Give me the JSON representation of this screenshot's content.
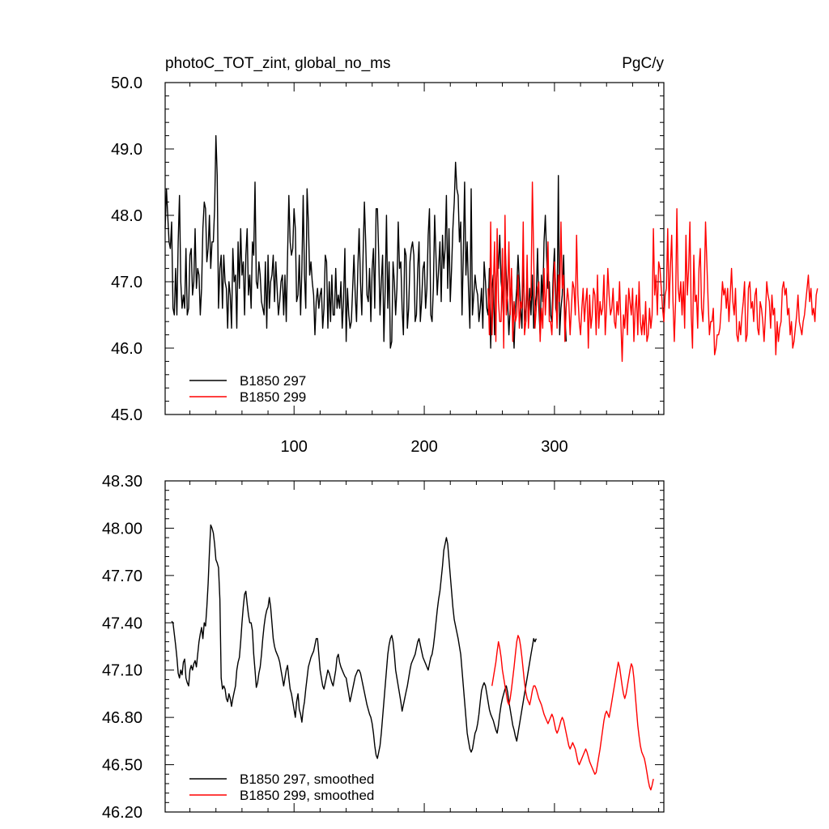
{
  "chart_data": [
    {
      "type": "line",
      "title": "photoC_TOT_zint, global_no_ms",
      "units": "PgC/y",
      "xlabel": "",
      "ylabel": "",
      "xlim": [
        1,
        384
      ],
      "ylim": [
        45.0,
        50.0
      ],
      "x_ticks": [
        100,
        200,
        300
      ],
      "x_tick_labels": [
        "100",
        "200",
        "300"
      ],
      "y_ticks": [
        45,
        46,
        47,
        48,
        49,
        50
      ],
      "y_tick_labels": [
        "45.0",
        "46.0",
        "47.0",
        "48.0",
        "49.0",
        "50.0"
      ],
      "legend_position": "bottom-left",
      "series": [
        {
          "name": "B1850 297",
          "color": "#000000",
          "x_start": 1,
          "values": [
            47.8,
            48.4,
            48.0,
            47.6,
            47.5,
            47.9,
            46.6,
            46.5,
            47.2,
            46.5,
            47.6,
            48.3,
            47.0,
            46.6,
            46.8,
            46.6,
            47.5,
            46.5,
            46.6,
            47.4,
            47.5,
            46.8,
            47.0,
            47.8,
            46.9,
            47.2,
            47.1,
            46.5,
            46.9,
            47.8,
            48.2,
            48.1,
            47.3,
            47.5,
            48.0,
            47.2,
            47.6,
            47.6,
            48.1,
            49.2,
            48.6,
            46.6,
            47.2,
            47.4,
            46.6,
            47.4,
            47.0,
            46.9,
            46.3,
            47.0,
            46.8,
            46.3,
            47.5,
            47.0,
            47.1,
            46.3,
            47.6,
            46.9,
            47.8,
            47.1,
            47.3,
            46.5,
            47.4,
            47.8,
            46.8,
            47.1,
            46.6,
            47.6,
            47.4,
            48.5,
            47.0,
            46.9,
            47.3,
            47.1,
            46.7,
            46.6,
            46.5,
            47.3,
            46.3,
            47.4,
            46.6,
            47.0,
            47.1,
            47.4,
            46.7,
            47.3,
            46.9,
            46.5,
            46.7,
            47.0,
            47.1,
            46.5,
            47.1,
            46.4,
            47.4,
            48.3,
            47.6,
            47.4,
            47.5,
            48.1,
            47.8,
            46.7,
            46.8,
            47.4,
            46.5,
            47.2,
            48.3,
            47.1,
            46.6,
            48.4,
            47.9,
            47.1,
            47.3,
            47.0,
            46.8,
            46.2,
            46.7,
            46.9,
            46.6,
            46.8,
            46.9,
            46.3,
            46.6,
            47.4,
            47.3,
            46.3,
            47.0,
            46.4,
            47.1,
            46.5,
            46.5,
            47.2,
            46.6,
            46.8,
            46.6,
            47.0,
            46.3,
            46.7,
            47.5,
            46.1,
            46.9,
            46.5,
            46.3,
            46.4,
            46.9,
            47.4,
            46.8,
            46.4,
            47.2,
            47.8,
            47.0,
            46.5,
            47.4,
            48.2,
            47.6,
            46.8,
            46.7,
            47.2,
            46.4,
            47.2,
            47.5,
            46.6,
            48.1,
            48.1,
            47.4,
            46.5,
            47.0,
            47.4,
            46.1,
            46.9,
            48.0,
            46.6,
            47.3,
            46.0,
            46.1,
            47.3,
            47.0,
            46.5,
            46.9,
            47.9,
            47.2,
            47.3,
            46.6,
            46.2,
            47.5,
            47.4,
            46.3,
            46.6,
            47.3,
            47.5,
            47.6,
            47.4,
            46.4,
            46.5,
            47.2,
            47.6,
            46.4,
            46.7,
            47.2,
            47.3,
            46.6,
            46.9,
            47.7,
            48.1,
            46.5,
            46.4,
            46.9,
            48.0,
            47.4,
            46.8,
            47.2,
            47.6,
            46.7,
            47.7,
            47.2,
            47.5,
            48.3,
            46.9,
            47.8,
            46.7,
            47.2,
            47.8,
            48.2,
            48.8,
            48.4,
            48.3,
            47.6,
            47.9,
            46.5,
            47.4,
            48.5,
            47.1,
            47.6,
            46.9,
            46.3,
            48.4,
            46.5,
            46.8,
            47.1,
            46.9,
            46.8,
            46.4,
            46.6,
            46.9,
            46.3,
            47.3,
            47.0,
            46.6,
            46.5,
            47.2,
            46.0,
            46.9,
            47.1,
            46.2,
            46.8,
            47.3,
            47.2,
            47.7,
            47.0,
            46.8,
            46.4,
            47.6,
            47.1,
            46.7,
            46.2,
            46.6,
            47.1,
            46.5,
            46.0,
            46.6,
            46.9,
            47.4,
            47.0,
            46.6,
            46.3,
            47.3,
            46.6,
            46.4,
            47.0,
            46.4,
            46.9,
            46.5,
            47.1,
            46.3,
            46.6,
            46.8,
            47.5,
            46.6,
            46.2,
            47.1,
            46.7,
            47.6,
            48.0,
            47.4,
            46.9,
            47.0,
            46.5,
            46.4,
            47.1,
            47.5,
            46.6,
            46.5,
            48.6,
            46.2,
            46.6,
            46.8,
            47.4,
            46.5,
            46.1
          ]
        },
        {
          "name": "B1850 299",
          "color": "#ff0000",
          "x_start": 249,
          "values": [
            46.9,
            46.2,
            47.9,
            46.2,
            46.9,
            47.6,
            46.1,
            47.8,
            46.7,
            46.4,
            46.4,
            47.5,
            46.0,
            48.0,
            46.5,
            46.8,
            47.6,
            46.5,
            47.2,
            46.1,
            46.7,
            46.4,
            46.5,
            47.1,
            46.3,
            46.7,
            46.6,
            47.9,
            46.2,
            46.4,
            47.4,
            46.3,
            46.7,
            46.8,
            48.5,
            47.4,
            46.3,
            46.6,
            46.9,
            47.0,
            46.1,
            46.6,
            46.3,
            47.2,
            46.5,
            46.9,
            47.6,
            46.4,
            46.4,
            46.2,
            46.8,
            47.3,
            46.9,
            46.3,
            47.1,
            46.7,
            47.9,
            46.9,
            47.1,
            46.1,
            46.6,
            46.9,
            46.7,
            46.2,
            46.6,
            47.0,
            46.9,
            46.5,
            47.7,
            46.8,
            46.4,
            46.2,
            46.6,
            46.9,
            46.4,
            46.7,
            46.9,
            46.0,
            46.8,
            46.3,
            46.5,
            46.9,
            46.8,
            46.2,
            47.1,
            46.3,
            46.7,
            46.5,
            46.6,
            47.1,
            46.2,
            46.6,
            47.2,
            46.8,
            46.5,
            46.6,
            46.9,
            46.4,
            46.3,
            46.7,
            46.5,
            47.0,
            46.4,
            45.8,
            46.5,
            46.3,
            46.8,
            46.2,
            46.9,
            46.7,
            46.5,
            46.9,
            46.1,
            46.6,
            46.8,
            46.2,
            47.0,
            46.4,
            46.2,
            46.5,
            46.2,
            46.7,
            46.1,
            46.2,
            46.6,
            46.3,
            46.5,
            47.8,
            46.8,
            47.1,
            46.5,
            47.3,
            47.2,
            46.9,
            46.6,
            46.4,
            46.8,
            46.9,
            47.8,
            46.6,
            47.2,
            47.7,
            46.7,
            46.1,
            46.7,
            48.1,
            46.9,
            46.7,
            47.0,
            46.5,
            47.0,
            46.3,
            47.7,
            46.8,
            47.2,
            47.9,
            46.5,
            46.0,
            47.4,
            46.7,
            46.8,
            46.3,
            47.2,
            47.5,
            46.6,
            46.4,
            46.9,
            47.9,
            47.3,
            46.7,
            46.2,
            46.4,
            46.4,
            46.6,
            45.9,
            46.0,
            46.2,
            46.2,
            46.3,
            46.6,
            47.0,
            46.8,
            46.9,
            46.6,
            46.9,
            46.4,
            46.8,
            47.2,
            46.7,
            46.5,
            46.9,
            46.2,
            46.1,
            46.4,
            46.2,
            46.5,
            46.7,
            47.0,
            46.1,
            46.2,
            46.9,
            47.0,
            46.6,
            46.7,
            46.4,
            46.8,
            46.9,
            46.3,
            46.2,
            46.7,
            46.6,
            46.4,
            46.1,
            46.5,
            47.0,
            46.8,
            46.7,
            46.3,
            46.8,
            46.5,
            46.6,
            45.9,
            46.4,
            46.1,
            46.3,
            46.4,
            46.9,
            47.0,
            46.8,
            46.9,
            46.5,
            46.6,
            46.2,
            46.4,
            46.0,
            46.1,
            46.3,
            46.5,
            46.8,
            46.4,
            46.3,
            46.2,
            46.4,
            46.5,
            46.7,
            46.9,
            47.1,
            46.7,
            46.9,
            46.5,
            46.6,
            46.4,
            46.8,
            46.9
          ]
        }
      ]
    },
    {
      "type": "line",
      "title": "",
      "xlabel": "",
      "ylabel": "",
      "xlim": [
        1,
        384
      ],
      "ylim": [
        46.2,
        48.3
      ],
      "y_ticks": [
        46.2,
        46.5,
        46.8,
        47.1,
        47.4,
        47.7,
        48.0,
        48.3
      ],
      "y_tick_labels": [
        "46.20",
        "46.50",
        "46.80",
        "47.10",
        "47.40",
        "47.70",
        "48.00",
        "48.30"
      ],
      "legend_position": "bottom-left",
      "series": [
        {
          "name": "B1850 297, smoothed",
          "color": "#000000",
          "x_start": 6,
          "values": [
            47.41,
            47.4,
            47.33,
            47.26,
            47.18,
            47.08,
            47.05,
            47.1,
            47.07,
            47.15,
            47.17,
            47.05,
            47.02,
            47.0,
            47.1,
            47.13,
            47.1,
            47.14,
            47.16,
            47.12,
            47.2,
            47.28,
            47.33,
            47.37,
            47.3,
            47.4,
            47.38,
            47.5,
            47.65,
            47.85,
            48.02,
            48.0,
            47.97,
            47.9,
            47.8,
            47.78,
            47.75,
            47.55,
            47.05,
            46.98,
            47.0,
            46.98,
            46.92,
            46.9,
            46.95,
            46.92,
            46.87,
            46.92,
            46.96,
            47.0,
            47.1,
            47.15,
            47.18,
            47.28,
            47.4,
            47.5,
            47.58,
            47.6,
            47.52,
            47.45,
            47.4,
            47.4,
            47.35,
            47.2,
            47.1,
            46.99,
            47.02,
            47.08,
            47.12,
            47.2,
            47.3,
            47.38,
            47.44,
            47.48,
            47.5,
            47.56,
            47.5,
            47.4,
            47.3,
            47.25,
            47.22,
            47.2,
            47.18,
            47.15,
            47.1,
            47.05,
            47.0,
            47.05,
            47.1,
            47.13,
            47.05,
            46.98,
            46.95,
            46.9,
            46.85,
            46.8,
            46.9,
            46.95,
            46.85,
            46.82,
            46.77,
            46.85,
            46.9,
            46.98,
            47.05,
            47.12,
            47.15,
            47.18,
            47.2,
            47.22,
            47.26,
            47.3,
            47.3,
            47.2,
            47.1,
            47.05,
            47.0,
            46.98,
            47.02,
            47.06,
            47.1,
            47.08,
            47.05,
            47.02,
            47.0,
            47.05,
            47.1,
            47.18,
            47.2,
            47.15,
            47.12,
            47.1,
            47.08,
            47.06,
            47.05,
            47.0,
            46.95,
            46.9,
            46.94,
            46.98,
            47.02,
            47.06,
            47.08,
            47.1,
            47.1,
            47.08,
            47.04,
            47.0,
            46.96,
            46.92,
            46.88,
            46.85,
            46.82,
            46.8,
            46.76,
            46.7,
            46.62,
            46.56,
            46.54,
            46.58,
            46.62,
            46.7,
            46.8,
            46.9,
            47.0,
            47.1,
            47.2,
            47.26,
            47.3,
            47.32,
            47.28,
            47.2,
            47.1,
            47.05,
            47.0,
            46.95,
            46.9,
            46.84,
            46.88,
            46.92,
            46.96,
            47.0,
            47.05,
            47.1,
            47.14,
            47.16,
            47.18,
            47.2,
            47.24,
            47.28,
            47.3,
            47.26,
            47.22,
            47.18,
            47.16,
            47.14,
            47.12,
            47.1,
            47.14,
            47.18,
            47.2,
            47.25,
            47.32,
            47.4,
            47.48,
            47.55,
            47.6,
            47.68,
            47.76,
            47.86,
            47.9,
            47.94,
            47.9,
            47.8,
            47.7,
            47.6,
            47.5,
            47.42,
            47.38,
            47.34,
            47.3,
            47.25,
            47.2,
            47.1,
            47.0,
            46.9,
            46.8,
            46.7,
            46.65,
            46.6,
            46.58,
            46.6,
            46.65,
            46.7,
            46.72,
            46.76,
            46.82,
            46.9,
            46.97,
            47.0,
            47.02,
            47.0,
            46.95,
            46.9,
            46.85,
            46.82,
            46.8,
            46.78,
            46.75,
            46.72,
            46.7,
            46.75,
            46.82,
            46.88,
            46.92,
            46.95,
            46.98,
            47.0,
            46.96,
            46.9,
            46.85,
            46.8,
            46.75,
            46.72,
            46.68,
            46.65,
            46.7,
            46.75,
            46.8,
            46.85,
            46.9,
            46.95,
            47.0,
            47.05,
            47.1,
            47.15,
            47.2,
            47.25,
            47.3,
            47.28,
            47.3
          ]
        },
        {
          "name": "B1850 299, smoothed",
          "color": "#ff0000",
          "x_start": 252,
          "values": [
            47.0,
            47.05,
            47.1,
            47.15,
            47.22,
            47.28,
            47.24,
            47.18,
            47.1,
            47.05,
            47.0,
            46.95,
            46.9,
            46.88,
            46.92,
            46.98,
            47.05,
            47.12,
            47.2,
            47.28,
            47.32,
            47.3,
            47.25,
            47.18,
            47.1,
            47.02,
            46.96,
            46.92,
            46.9,
            46.88,
            46.92,
            46.97,
            47.0,
            47.0,
            46.98,
            46.95,
            46.92,
            46.9,
            46.88,
            46.85,
            46.82,
            46.8,
            46.78,
            46.76,
            46.78,
            46.8,
            46.82,
            46.8,
            46.76,
            46.72,
            46.7,
            46.72,
            46.75,
            46.78,
            46.8,
            46.78,
            46.74,
            46.7,
            46.66,
            46.62,
            46.6,
            46.62,
            46.64,
            46.62,
            46.6,
            46.56,
            46.52,
            46.5,
            46.52,
            46.54,
            46.56,
            46.58,
            46.6,
            46.58,
            46.55,
            46.52,
            46.5,
            46.48,
            46.46,
            46.44,
            46.45,
            46.5,
            46.55,
            46.6,
            46.66,
            46.72,
            46.78,
            46.82,
            46.84,
            46.82,
            46.8,
            46.85,
            46.9,
            46.95,
            47.0,
            47.05,
            47.1,
            47.15,
            47.12,
            47.06,
            47.0,
            46.95,
            46.92,
            46.95,
            47.0,
            47.05,
            47.1,
            47.14,
            47.12,
            47.05,
            46.95,
            46.85,
            46.75,
            46.68,
            46.62,
            46.58,
            46.56,
            46.54,
            46.5,
            46.45,
            46.4,
            46.36,
            46.34,
            46.37,
            46.41
          ]
        }
      ]
    }
  ]
}
